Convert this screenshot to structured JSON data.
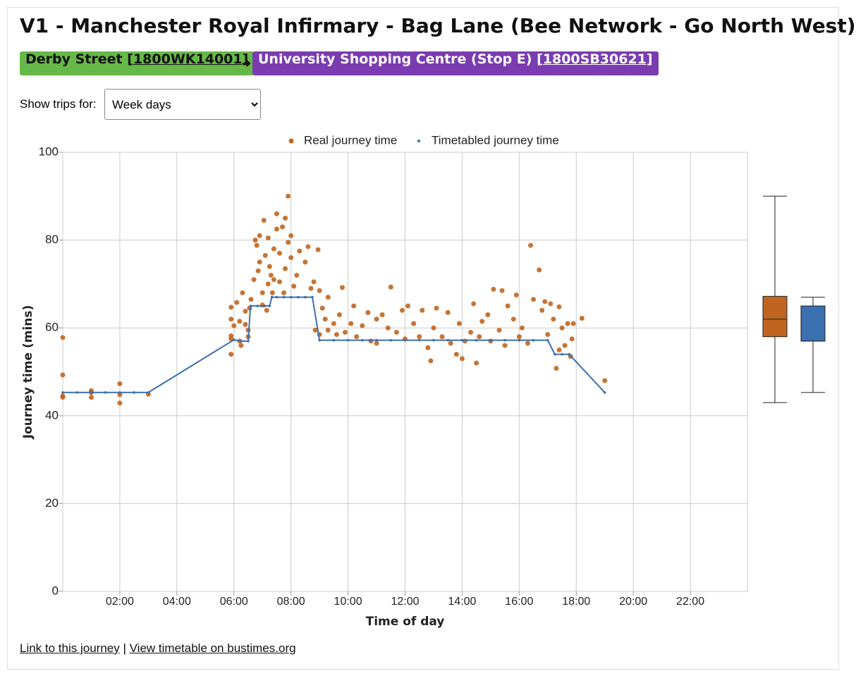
{
  "header": {
    "title": "V1 - Manchester Royal Infirmary - Bag Lane (Bee Network - Go North West)",
    "from": {
      "name": "Derby Street",
      "open": "[",
      "code": "1800WK14001",
      "close": "]"
    },
    "to": {
      "name": "University Shopping Centre (Stop E)",
      "open": "[",
      "code": "1800SB30621",
      "close": "]"
    }
  },
  "filter": {
    "label": "Show trips for:",
    "selected": "Week days"
  },
  "chart_data": [
    {
      "type": "scatter",
      "x_label": "Time of day",
      "y_label": "Journey time (mins)",
      "legend": "top",
      "grid": true,
      "xlim": [
        0,
        24
      ],
      "ylim": [
        0,
        100
      ],
      "xticks": [
        {
          "value": 2,
          "label": "02:00"
        },
        {
          "value": 4,
          "label": "04:00"
        },
        {
          "value": 6,
          "label": "06:00"
        },
        {
          "value": 8,
          "label": "08:00"
        },
        {
          "value": 10,
          "label": "10:00"
        },
        {
          "value": 12,
          "label": "12:00"
        },
        {
          "value": 14,
          "label": "14:00"
        },
        {
          "value": 16,
          "label": "16:00"
        },
        {
          "value": 18,
          "label": "18:00"
        },
        {
          "value": 20,
          "label": "20:00"
        },
        {
          "value": 22,
          "label": "22:00"
        }
      ],
      "yticks": [
        0,
        20,
        40,
        60,
        80,
        100
      ],
      "series": [
        {
          "name": "Real journey time",
          "color": "#c0651f",
          "mode": "points",
          "x": [
            0,
            0,
            0,
            0,
            1,
            1,
            1,
            2,
            2,
            2,
            3,
            5.9,
            5.9,
            5.9,
            5.9,
            5.9,
            6,
            6.1,
            6.2,
            6.2,
            6.25,
            6.3,
            6.4,
            6.4,
            6.5,
            6.5,
            6.55,
            6.6,
            6.7,
            6.75,
            6.8,
            6.85,
            6.9,
            6.9,
            7,
            7,
            7.05,
            7.1,
            7.15,
            7.2,
            7.2,
            7.25,
            7.3,
            7.35,
            7.4,
            7.4,
            7.5,
            7.5,
            7.6,
            7.6,
            7.7,
            7.75,
            7.8,
            7.8,
            7.9,
            7.9,
            8,
            8,
            8.1,
            8.2,
            8.3,
            8.5,
            8.6,
            8.7,
            8.8,
            8.85,
            8.95,
            9,
            9,
            9.1,
            9.2,
            9.3,
            9.3,
            9.5,
            9.6,
            9.7,
            9.8,
            9.9,
            10.1,
            10.2,
            10.3,
            10.5,
            10.7,
            10.8,
            11,
            11,
            11.2,
            11.4,
            11.5,
            11.7,
            11.9,
            12,
            12.1,
            12.3,
            12.5,
            12.6,
            12.8,
            12.9,
            13,
            13.1,
            13.3,
            13.5,
            13.6,
            13.8,
            13.9,
            14,
            14.1,
            14.3,
            14.4,
            14.5,
            14.6,
            14.7,
            14.9,
            15,
            15.1,
            15.3,
            15.4,
            15.5,
            15.6,
            15.8,
            15.9,
            16,
            16.1,
            16.3,
            16.4,
            16.5,
            16.7,
            16.8,
            16.9,
            17,
            17.1,
            17.2,
            17.3,
            17.4,
            17.4,
            17.5,
            17.6,
            17.7,
            17.8,
            17.85,
            17.9,
            18.2,
            19
          ],
          "values": [
            57.8,
            49.3,
            44.5,
            44.2,
            45.7,
            45.3,
            44.2,
            47.3,
            44.8,
            42.9,
            44.9,
            54,
            57.5,
            58.2,
            62,
            64.7,
            60.5,
            65.8,
            61.5,
            57,
            56,
            68,
            60.8,
            63.8,
            59.5,
            58,
            64.5,
            66.5,
            71,
            80,
            78.8,
            73,
            75,
            81,
            65.2,
            68,
            84.5,
            76.5,
            64,
            70,
            80.5,
            74,
            72,
            68,
            78,
            71,
            86,
            82.5,
            77,
            70.5,
            83,
            68,
            85,
            73.5,
            90,
            79.5,
            76,
            81,
            69.5,
            72,
            77.5,
            75,
            78.5,
            69,
            70.5,
            59.5,
            77.8,
            68.5,
            58.5,
            64.5,
            62,
            59.5,
            67,
            61,
            58.5,
            63,
            69.2,
            59,
            61,
            65,
            58,
            60.5,
            63.5,
            57,
            62,
            56.5,
            63,
            60,
            69.3,
            59,
            64,
            57.5,
            65,
            61,
            58,
            64,
            55.5,
            52.5,
            60,
            64.5,
            58,
            63.5,
            56.5,
            54,
            61,
            53,
            57,
            59,
            65.5,
            52,
            58,
            61.5,
            63,
            57,
            68.8,
            59.5,
            68.5,
            56,
            65,
            62,
            67.5,
            58,
            60,
            56.5,
            78.8,
            66.5,
            73.2,
            64,
            66,
            58.5,
            65.5,
            62,
            50.8,
            55,
            64.8,
            60,
            56,
            61,
            53.5,
            57.5,
            61,
            62.2,
            48
          ]
        },
        {
          "name": "Timetabled journey time",
          "color": "#3a6fb0",
          "mode": "line",
          "x": [
            0,
            0.5,
            1,
            1.5,
            2,
            2.5,
            3,
            6,
            6.25,
            6.5,
            6.58,
            6.83,
            7.08,
            7.25,
            7.33,
            7.5,
            7.75,
            8,
            8.25,
            8.5,
            8.75,
            9,
            9.5,
            10,
            10.5,
            11,
            11.5,
            12,
            12.5,
            13,
            13.5,
            14,
            14.5,
            15,
            15.5,
            16,
            16.5,
            17,
            17.25,
            17.5,
            17.75,
            19
          ],
          "values": [
            45.3,
            45.3,
            45.3,
            45.3,
            45.3,
            45.3,
            45.3,
            57.3,
            57,
            57,
            65,
            65,
            65,
            65,
            67,
            67,
            67,
            67,
            67,
            67,
            67,
            57.2,
            57.2,
            57.2,
            57.2,
            57.2,
            57.2,
            57.2,
            57.2,
            57.2,
            57.2,
            57.2,
            57.2,
            57.2,
            57.2,
            57.2,
            57.2,
            57.2,
            54,
            54,
            54,
            45.3
          ]
        }
      ]
    },
    {
      "type": "box",
      "ylim": [
        0,
        100
      ],
      "series": [
        {
          "color": "#c0651f",
          "min": 43,
          "q1": 58,
          "median": 62,
          "q3": 67.2,
          "max": 90
        },
        {
          "color": "#3a6fb0",
          "min": 45.3,
          "q1": 57,
          "median": 57,
          "q3": 65,
          "max": 67
        }
      ]
    }
  ],
  "footer": {
    "link1": "Link to this journey",
    "sep": "|",
    "link2": "View timetable on bustimes.org"
  }
}
